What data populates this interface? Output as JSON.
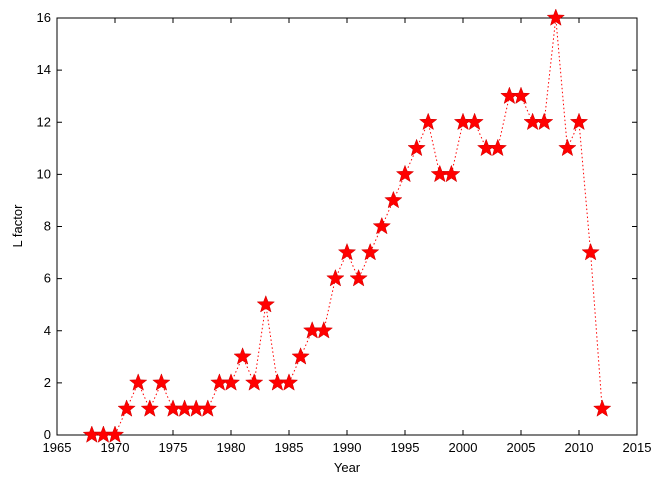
{
  "chart_data": {
    "type": "line",
    "title": "",
    "xlabel": "Year",
    "ylabel": "L factor",
    "xlim": [
      1965,
      2015
    ],
    "ylim": [
      0,
      16
    ],
    "xticks": [
      1965,
      1970,
      1975,
      1980,
      1985,
      1990,
      1995,
      2000,
      2005,
      2010,
      2015
    ],
    "yticks": [
      0,
      2,
      4,
      6,
      8,
      10,
      12,
      14,
      16
    ],
    "grid": false,
    "series": [
      {
        "color": "#ff0000",
        "marker": "star",
        "line_style": "dotted",
        "x": [
          1968,
          1969,
          1970,
          1971,
          1972,
          1973,
          1974,
          1975,
          1976,
          1977,
          1978,
          1979,
          1980,
          1981,
          1982,
          1983,
          1984,
          1985,
          1986,
          1987,
          1988,
          1989,
          1990,
          1991,
          1992,
          1993,
          1994,
          1995,
          1996,
          1997,
          1998,
          1999,
          2000,
          2001,
          2002,
          2003,
          2004,
          2005,
          2006,
          2007,
          2008,
          2009,
          2010,
          2011,
          2012
        ],
        "y": [
          0,
          0,
          0,
          1,
          2,
          1,
          2,
          1,
          1,
          1,
          1,
          2,
          2,
          3,
          2,
          5,
          2,
          2,
          3,
          4,
          4,
          6,
          7,
          6,
          7,
          8,
          9,
          10,
          11,
          12,
          10,
          10,
          12,
          12,
          11,
          11,
          13,
          13,
          12,
          12,
          16,
          11,
          12,
          7,
          1
        ]
      }
    ]
  }
}
